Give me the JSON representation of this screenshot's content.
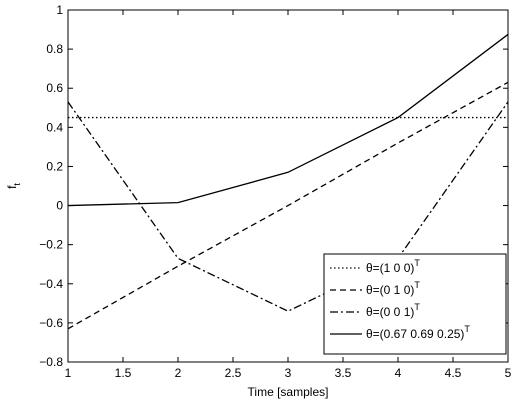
{
  "chart_data": {
    "type": "line",
    "title": "",
    "xlabel": "Time [samples]",
    "ylabel": "f",
    "ylabel_subscript": "t",
    "xlim": [
      1,
      5
    ],
    "ylim": [
      -0.8,
      1
    ],
    "xticks": [
      1,
      1.5,
      2,
      2.5,
      3,
      3.5,
      4,
      4.5,
      5
    ],
    "xtick_labels": [
      "1",
      "1.5",
      "2",
      "2.5",
      "3",
      "3.5",
      "4",
      "4.5",
      "5"
    ],
    "yticks": [
      -0.8,
      -0.6,
      -0.4,
      -0.2,
      0,
      0.2,
      0.4,
      0.6,
      0.8,
      1
    ],
    "ytick_labels": [
      "−0.8",
      "−0.6",
      "−0.4",
      "−0.2",
      "0",
      "0.2",
      "0.4",
      "0.6",
      "0.8",
      "1"
    ],
    "grid": false,
    "legend_position": "bottom-right",
    "x": [
      1,
      2,
      3,
      4,
      5
    ],
    "series": [
      {
        "name": "θ=(1 0 0)",
        "name_superscript": "T",
        "values": [
          0.45,
          0.45,
          0.45,
          0.45,
          0.45
        ],
        "dash": "1.5,2.5",
        "color": "#000000"
      },
      {
        "name": "θ=(0 1 0)",
        "name_superscript": "T",
        "values": [
          -0.63,
          -0.31,
          0.0,
          0.32,
          0.63
        ],
        "dash": "6,4",
        "color": "#000000"
      },
      {
        "name": "θ=(0 0 1)",
        "name_superscript": "T",
        "values": [
          0.53,
          -0.27,
          -0.54,
          -0.27,
          0.53
        ],
        "dash": "8,3,2,3",
        "color": "#000000"
      },
      {
        "name": "θ=(0.67 0.69 0.25)",
        "name_superscript": "T",
        "values": [
          0.0,
          0.015,
          0.17,
          0.45,
          0.875
        ],
        "dash": "",
        "color": "#000000"
      }
    ]
  }
}
